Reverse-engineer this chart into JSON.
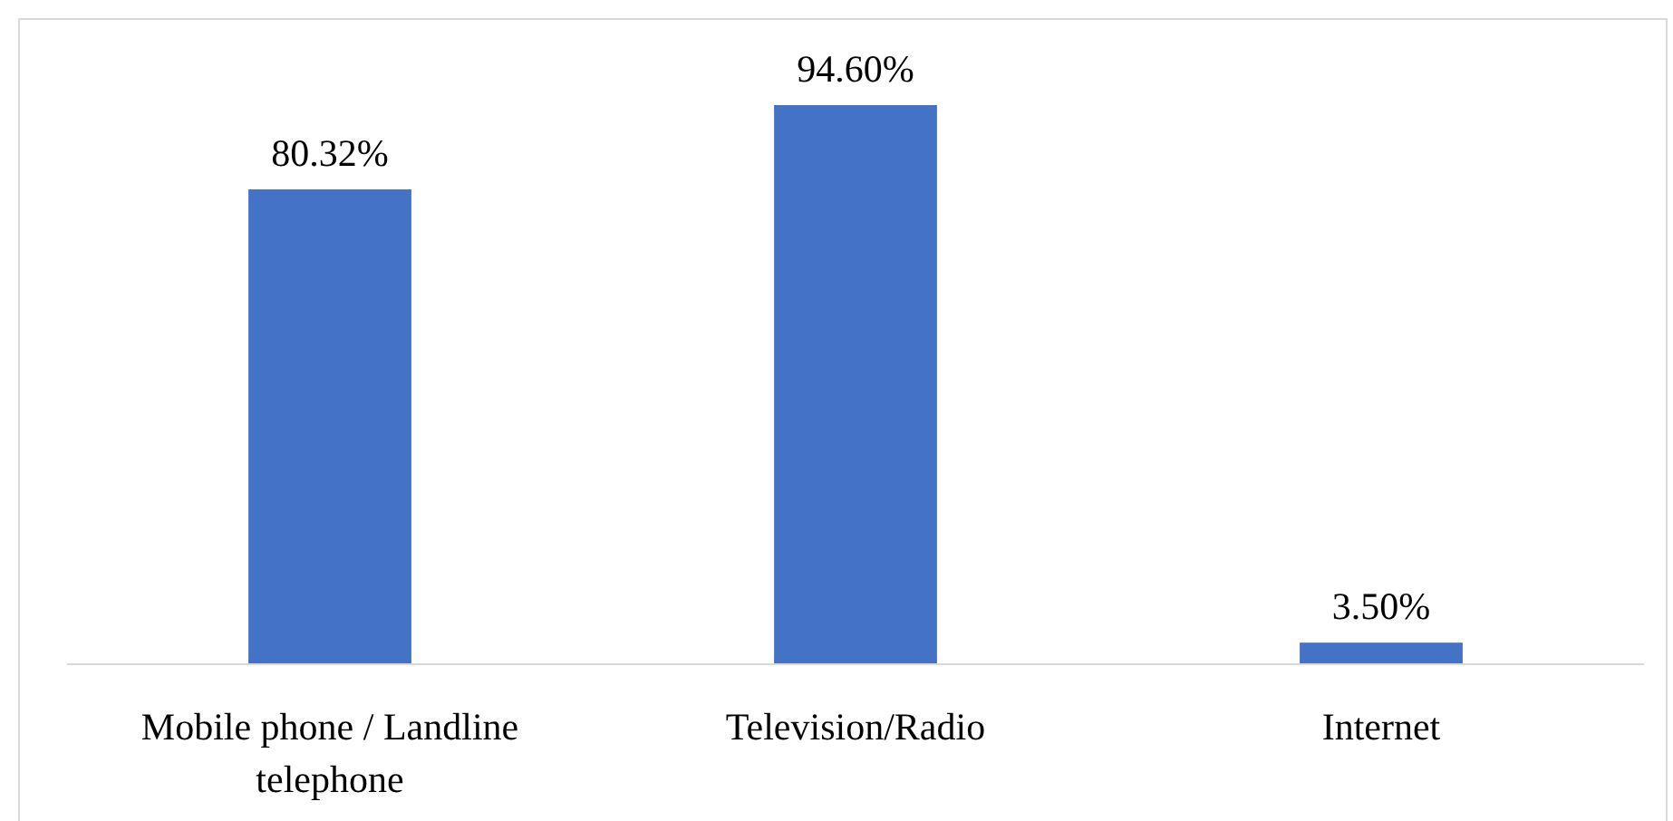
{
  "chart_data": {
    "type": "bar",
    "categories": [
      "Mobile phone / Landline telephone",
      "Television/Radio",
      "Internet"
    ],
    "values": [
      80.32,
      94.6,
      3.5
    ],
    "color": "#4472c4",
    "value_labels": [
      "80.32%",
      "94.60%",
      "3.50%"
    ]
  }
}
